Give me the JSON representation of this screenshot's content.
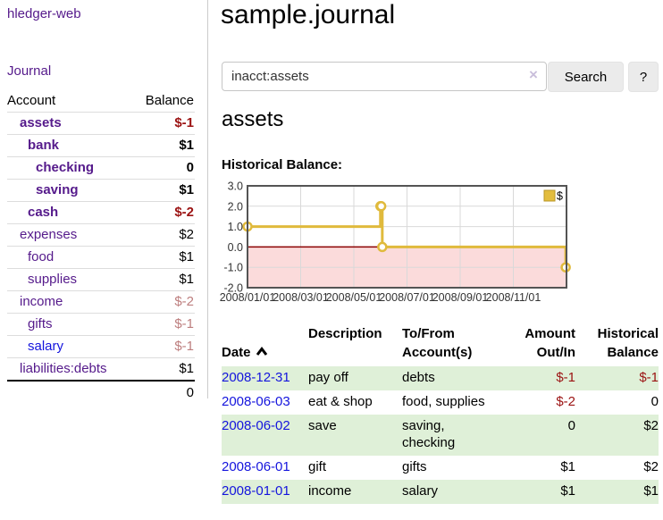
{
  "app": {
    "brand": "hledger-web"
  },
  "colors": {
    "purple_link": "#551a8b",
    "blue_link": "#1414dd",
    "negative_strong": "#9b1212",
    "negative_muted": "#bd7e7e",
    "row_green": "#dff0d8",
    "button_gray": "#ebebeb",
    "chart_line": "#e0ba3c",
    "chart_negative_region": "#fbdbdb",
    "chart_zero_line": "#8b0000"
  },
  "sidebar": {
    "journal_link": "Journal",
    "accounts_table": {
      "headers": {
        "account": "Account",
        "balance": "Balance"
      },
      "rows": [
        {
          "account": "assets",
          "level": 1,
          "bold": true,
          "balance": "$-1",
          "tone": "neg",
          "link_tone": "purple"
        },
        {
          "account": "bank",
          "level": 2,
          "bold": true,
          "balance": "$1",
          "tone": "pos",
          "link_tone": "purple"
        },
        {
          "account": "checking",
          "level": 3,
          "bold": true,
          "balance": "0",
          "tone": "pos",
          "link_tone": "purple"
        },
        {
          "account": "saving",
          "level": 3,
          "bold": true,
          "balance": "$1",
          "tone": "pos",
          "link_tone": "purple"
        },
        {
          "account": "cash",
          "level": 2,
          "bold": true,
          "balance": "$-2",
          "tone": "neg",
          "link_tone": "purple"
        },
        {
          "account": "expenses",
          "level": 1,
          "bold": false,
          "balance": "$2",
          "tone": "pos",
          "link_tone": "purple"
        },
        {
          "account": "food",
          "level": 2,
          "bold": false,
          "balance": "$1",
          "tone": "pos",
          "link_tone": "purple"
        },
        {
          "account": "supplies",
          "level": 2,
          "bold": false,
          "balance": "$1",
          "tone": "pos",
          "link_tone": "purple"
        },
        {
          "account": "income",
          "level": 1,
          "bold": false,
          "balance": "$-2",
          "tone": "neg-muted",
          "link_tone": "purple"
        },
        {
          "account": "gifts",
          "level": 2,
          "bold": false,
          "balance": "$-1",
          "tone": "neg-muted",
          "link_tone": "purple"
        },
        {
          "account": "salary",
          "level": 2,
          "bold": false,
          "balance": "$-1",
          "tone": "neg-muted",
          "link_tone": "blue"
        },
        {
          "account": "liabilities:debts",
          "level": 1,
          "bold": false,
          "balance": "$1",
          "tone": "pos",
          "link_tone": "purple"
        }
      ],
      "total": "0"
    }
  },
  "main": {
    "title": "sample.journal",
    "search": {
      "value": "inacct:assets",
      "clear_icon": "×",
      "button_label": "Search",
      "help_label": "?"
    },
    "account_heading": "assets",
    "chart_label": "Historical Balance:"
  },
  "chart_data": {
    "type": "line",
    "title": "Historical Balance",
    "step": true,
    "legend": [
      {
        "label": "$",
        "color": "#e3bd3e"
      }
    ],
    "legend_position": "top-right",
    "grid": true,
    "x_unit": "months since 2008-01-01",
    "xlim": [
      0,
      12
    ],
    "ylim": [
      -2.0,
      3.0
    ],
    "y_ticks": [
      3.0,
      2.0,
      1.0,
      0.0,
      -1.0,
      -2.0
    ],
    "x_ticks": [
      {
        "x": 0,
        "label": "2008/01/01"
      },
      {
        "x": 2,
        "label": "2008/03/01"
      },
      {
        "x": 4,
        "label": "2008/05/01"
      },
      {
        "x": 6,
        "label": "2008/07/01"
      },
      {
        "x": 8,
        "label": "2008/09/01"
      },
      {
        "x": 10,
        "label": "2008/11/01"
      }
    ],
    "series": [
      {
        "name": "$",
        "points": [
          {
            "date": "2008-01-01",
            "x": 0,
            "y": 1
          },
          {
            "date": "2008-06-01",
            "x": 5.0,
            "y": 2
          },
          {
            "date": "2008-06-02",
            "x": 5.03,
            "y": 2
          },
          {
            "date": "2008-06-03",
            "x": 5.07,
            "y": 0
          },
          {
            "date": "2008-12-31",
            "x": 11.97,
            "y": -1
          }
        ]
      }
    ],
    "zero_line_color": "#8b0000",
    "negative_region_color": "#fbdbdb",
    "line_color": "#e0ba3c"
  },
  "transactions": {
    "headers": {
      "date": "Date",
      "description": "Description",
      "accounts": "To/From\nAccount(s)",
      "amount": "Amount\nOut/In",
      "balance": "Historical\nBalance"
    },
    "rows": [
      {
        "date": "2008-12-31",
        "description": "pay off",
        "accounts": "debts",
        "amount": "$-1",
        "amount_tone": "neg",
        "balance": "$-1",
        "balance_tone": "neg"
      },
      {
        "date": "2008-06-03",
        "description": "eat & shop",
        "accounts": "food, supplies",
        "amount": "$-2",
        "amount_tone": "neg",
        "balance": "0",
        "balance_tone": "pos"
      },
      {
        "date": "2008-06-02",
        "description": "save",
        "accounts": "saving,\nchecking",
        "amount": "0",
        "amount_tone": "pos",
        "balance": "$2",
        "balance_tone": "pos"
      },
      {
        "date": "2008-06-01",
        "description": "gift",
        "accounts": "gifts",
        "amount": "$1",
        "amount_tone": "pos",
        "balance": "$2",
        "balance_tone": "pos"
      },
      {
        "date": "2008-01-01",
        "description": "income",
        "accounts": "salary",
        "amount": "$1",
        "amount_tone": "pos",
        "balance": "$1",
        "balance_tone": "pos"
      }
    ]
  }
}
